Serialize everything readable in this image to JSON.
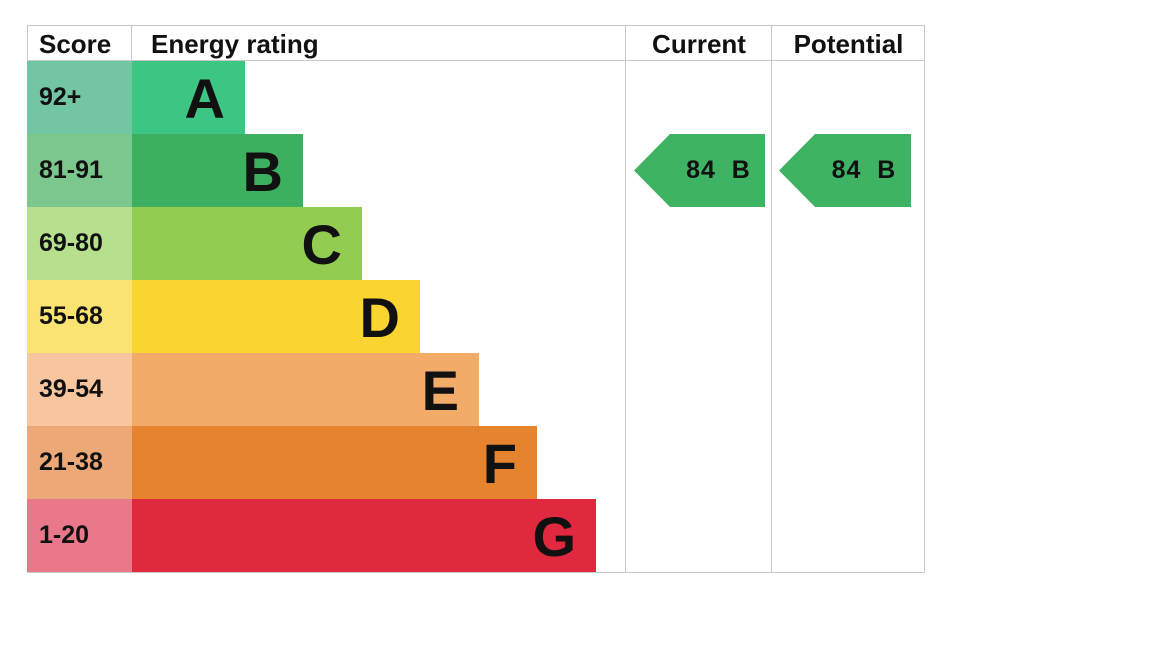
{
  "chart_data": {
    "type": "table",
    "headers": {
      "score": "Score",
      "rating": "Energy rating",
      "current": "Current",
      "potential": "Potential"
    },
    "bands": [
      {
        "score": "92+",
        "letter": "A",
        "bar_color": "#3dc583",
        "score_color": "#72c6a4"
      },
      {
        "score": "81-91",
        "letter": "B",
        "bar_color": "#3cb05e",
        "score_color": "#7bc78e"
      },
      {
        "score": "69-80",
        "letter": "C",
        "bar_color": "#92cd52",
        "score_color": "#b6e08e"
      },
      {
        "score": "55-68",
        "letter": "D",
        "bar_color": "#fad532",
        "score_color": "#fbe372"
      },
      {
        "score": "39-54",
        "letter": "E",
        "bar_color": "#f3ab6a",
        "score_color": "#f7c69e"
      },
      {
        "score": "21-38",
        "letter": "F",
        "bar_color": "#e5832f",
        "score_color": "#eda877"
      },
      {
        "score": "1-20",
        "letter": "G",
        "bar_color": "#e0293e",
        "score_color": "#e8788a"
      }
    ],
    "current": {
      "value": 84,
      "letter": "B",
      "label": "84  B",
      "color": "#3db363"
    },
    "potential": {
      "value": 84,
      "letter": "B",
      "label": "84  B",
      "color": "#3db363"
    }
  }
}
